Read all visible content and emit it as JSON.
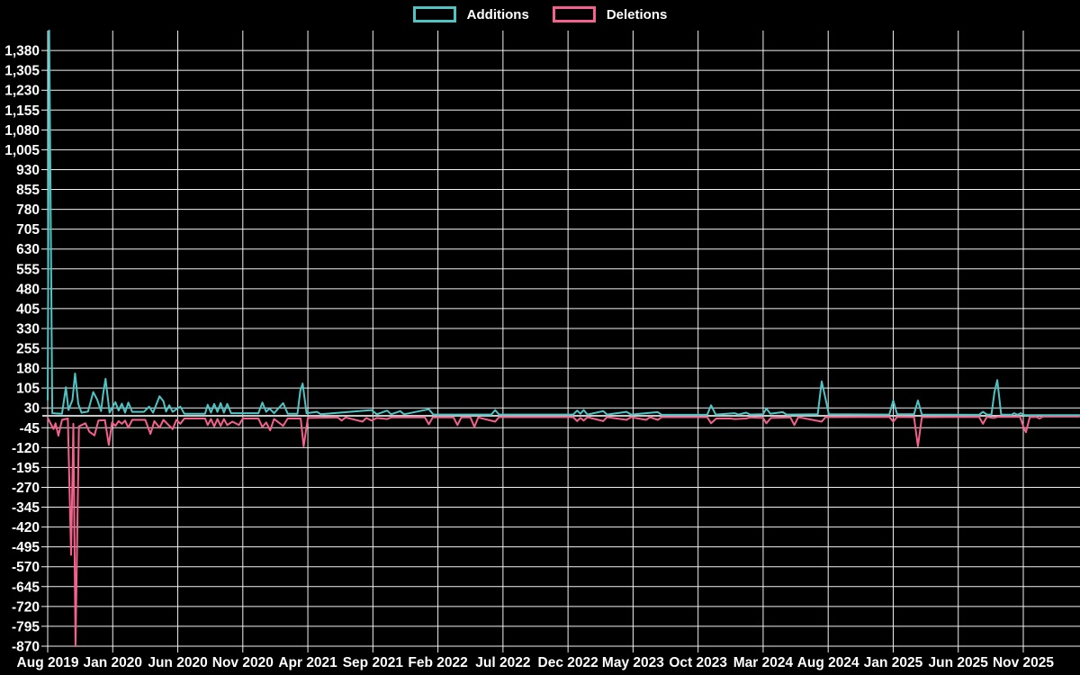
{
  "legend": {
    "items": [
      {
        "id": "additions",
        "label": "Additions",
        "color": "#4ec4c4"
      },
      {
        "id": "deletions",
        "label": "Deletions",
        "color": "#f4618c"
      }
    ]
  },
  "colors": {
    "background": "#000000",
    "grid": "#f2f2f2",
    "zero_line": "#c9c9c9",
    "text": "#ffffff",
    "additions": "#4ec4c4",
    "deletions": "#f4618c"
  },
  "chart_data": {
    "type": "line",
    "title": "",
    "xlabel": "",
    "ylabel": "",
    "legend_position": "top-center",
    "grid": true,
    "x_unit": "months since Aug 2019 (weekly data)",
    "x_axis": {
      "tick_interval_months": 5,
      "tick_labels": [
        "Aug 2019",
        "Jan 2020",
        "Jun 2020",
        "Nov 2020",
        "Apr 2021",
        "Sep 2021",
        "Feb 2022",
        "Jul 2022",
        "Dec 2022",
        "May 2023",
        "Oct 2023",
        "Mar 2024",
        "Aug 2024",
        "Jan 2025",
        "Jun 2025",
        "Nov 2025"
      ],
      "domain_months": [
        0,
        79.3
      ]
    },
    "y_axis": {
      "min": -870,
      "max": 1455,
      "tick_step": 75,
      "ticks": [
        1380,
        1305,
        1230,
        1155,
        1080,
        1005,
        930,
        855,
        780,
        705,
        630,
        555,
        480,
        405,
        330,
        255,
        180,
        105,
        30,
        -45,
        -120,
        -195,
        -270,
        -345,
        -420,
        -495,
        -570,
        -645,
        -720,
        -795,
        -870
      ]
    },
    "zero_line": true,
    "series": [
      {
        "name": "Additions",
        "color": "#4ec4c4",
        "points": [
          [
            0,
            60
          ],
          [
            0.12,
            1455
          ],
          [
            0.35,
            10
          ],
          [
            1.1,
            8
          ],
          [
            1.4,
            108
          ],
          [
            1.6,
            22
          ],
          [
            1.9,
            60
          ],
          [
            2.1,
            160
          ],
          [
            2.35,
            45
          ],
          [
            2.6,
            12
          ],
          [
            3.1,
            16
          ],
          [
            3.5,
            90
          ],
          [
            3.8,
            62
          ],
          [
            4.1,
            18
          ],
          [
            4.27,
            85
          ],
          [
            4.45,
            140
          ],
          [
            4.75,
            12
          ],
          [
            5.2,
            52
          ],
          [
            5.45,
            20
          ],
          [
            5.7,
            46
          ],
          [
            5.95,
            12
          ],
          [
            6.2,
            50
          ],
          [
            6.5,
            15
          ],
          [
            7.4,
            15
          ],
          [
            7.8,
            35
          ],
          [
            8.1,
            12
          ],
          [
            8.6,
            74
          ],
          [
            8.9,
            55
          ],
          [
            9.1,
            16
          ],
          [
            9.35,
            40
          ],
          [
            9.6,
            15
          ],
          [
            10.2,
            35
          ],
          [
            10.5,
            8
          ],
          [
            12.1,
            8
          ],
          [
            12.3,
            42
          ],
          [
            12.55,
            12
          ],
          [
            12.8,
            45
          ],
          [
            13.05,
            15
          ],
          [
            13.3,
            48
          ],
          [
            13.55,
            12
          ],
          [
            13.8,
            45
          ],
          [
            14.1,
            10
          ],
          [
            16.2,
            10
          ],
          [
            16.5,
            50
          ],
          [
            16.8,
            15
          ],
          [
            17.05,
            28
          ],
          [
            17.4,
            10
          ],
          [
            18.1,
            48
          ],
          [
            18.45,
            8
          ],
          [
            19.2,
            8
          ],
          [
            19.42,
            95
          ],
          [
            19.6,
            122
          ],
          [
            19.9,
            10
          ],
          [
            20.7,
            15
          ],
          [
            21.0,
            6
          ],
          [
            24.9,
            22
          ],
          [
            25.3,
            6
          ],
          [
            26.1,
            20
          ],
          [
            26.4,
            6
          ],
          [
            27.1,
            18
          ],
          [
            27.4,
            6
          ],
          [
            29.3,
            25
          ],
          [
            29.65,
            5
          ],
          [
            34.1,
            5
          ],
          [
            34.4,
            22
          ],
          [
            34.7,
            5
          ],
          [
            40.4,
            5
          ],
          [
            40.7,
            20
          ],
          [
            40.95,
            8
          ],
          [
            41.2,
            22
          ],
          [
            41.5,
            5
          ],
          [
            42.7,
            18
          ],
          [
            43.0,
            5
          ],
          [
            44.5,
            15
          ],
          [
            44.85,
            5
          ],
          [
            46.9,
            14
          ],
          [
            47.2,
            4
          ],
          [
            50.7,
            4
          ],
          [
            51.0,
            40
          ],
          [
            51.35,
            5
          ],
          [
            52.8,
            10
          ],
          [
            53.1,
            5
          ],
          [
            53.7,
            12
          ],
          [
            54.0,
            5
          ],
          [
            55.0,
            6
          ],
          [
            55.25,
            28
          ],
          [
            55.55,
            8
          ],
          [
            56.5,
            14
          ],
          [
            56.8,
            5
          ],
          [
            59.2,
            6
          ],
          [
            59.5,
            130
          ],
          [
            59.75,
            75
          ],
          [
            60.05,
            6
          ],
          [
            64.7,
            5
          ],
          [
            65.0,
            58
          ],
          [
            65.3,
            6
          ],
          [
            66.6,
            6
          ],
          [
            66.9,
            58
          ],
          [
            67.2,
            5
          ],
          [
            71.6,
            4
          ],
          [
            71.9,
            15
          ],
          [
            72.2,
            5
          ],
          [
            72.55,
            5
          ],
          [
            72.78,
            88
          ],
          [
            73.0,
            135
          ],
          [
            73.3,
            5
          ],
          [
            74.1,
            4
          ],
          [
            74.3,
            10
          ],
          [
            74.55,
            4
          ],
          [
            74.8,
            10
          ],
          [
            75.1,
            3
          ],
          [
            79.3,
            3
          ]
        ]
      },
      {
        "name": "Deletions",
        "color": "#f4618c",
        "points": [
          [
            0,
            -8
          ],
          [
            0.45,
            -50
          ],
          [
            0.6,
            -28
          ],
          [
            0.82,
            -75
          ],
          [
            1.1,
            -15
          ],
          [
            1.55,
            -10
          ],
          [
            1.8,
            -525
          ],
          [
            1.97,
            -30
          ],
          [
            2.14,
            -870
          ],
          [
            2.4,
            -40
          ],
          [
            2.6,
            -35
          ],
          [
            2.9,
            -28
          ],
          [
            3.2,
            -60
          ],
          [
            3.6,
            -74
          ],
          [
            3.9,
            -18
          ],
          [
            4.4,
            -16
          ],
          [
            4.7,
            -110
          ],
          [
            4.95,
            -25
          ],
          [
            5.2,
            -38
          ],
          [
            5.45,
            -20
          ],
          [
            5.7,
            -30
          ],
          [
            5.95,
            -18
          ],
          [
            6.2,
            -45
          ],
          [
            6.5,
            -15
          ],
          [
            7.5,
            -15
          ],
          [
            7.9,
            -68
          ],
          [
            8.2,
            -20
          ],
          [
            8.6,
            -45
          ],
          [
            8.9,
            -15
          ],
          [
            9.6,
            -50
          ],
          [
            9.9,
            -15
          ],
          [
            10.2,
            -30
          ],
          [
            10.5,
            -10
          ],
          [
            12.1,
            -10
          ],
          [
            12.3,
            -35
          ],
          [
            12.55,
            -12
          ],
          [
            12.8,
            -40
          ],
          [
            13.05,
            -12
          ],
          [
            13.3,
            -38
          ],
          [
            13.55,
            -12
          ],
          [
            13.8,
            -35
          ],
          [
            14.2,
            -22
          ],
          [
            14.7,
            -35
          ],
          [
            15.0,
            -10
          ],
          [
            16.2,
            -10
          ],
          [
            16.5,
            -42
          ],
          [
            16.8,
            -25
          ],
          [
            17.1,
            -55
          ],
          [
            17.4,
            -12
          ],
          [
            18.1,
            -38
          ],
          [
            18.45,
            -10
          ],
          [
            19.45,
            -10
          ],
          [
            19.68,
            -115
          ],
          [
            20.0,
            -8
          ],
          [
            22.3,
            -6
          ],
          [
            22.6,
            -18
          ],
          [
            22.9,
            -6
          ],
          [
            24.2,
            -22
          ],
          [
            24.5,
            -8
          ],
          [
            24.9,
            -18
          ],
          [
            25.3,
            -8
          ],
          [
            26.1,
            -12
          ],
          [
            26.4,
            -6
          ],
          [
            29.0,
            -6
          ],
          [
            29.3,
            -32
          ],
          [
            29.6,
            -6
          ],
          [
            31.2,
            -6
          ],
          [
            31.5,
            -35
          ],
          [
            31.8,
            -6
          ],
          [
            32.5,
            -6
          ],
          [
            32.8,
            -42
          ],
          [
            33.1,
            -6
          ],
          [
            34.4,
            -22
          ],
          [
            34.7,
            -5
          ],
          [
            40.4,
            -5
          ],
          [
            40.7,
            -20
          ],
          [
            40.95,
            -8
          ],
          [
            41.2,
            -18
          ],
          [
            41.5,
            -5
          ],
          [
            42.7,
            -20
          ],
          [
            43.0,
            -5
          ],
          [
            44.5,
            -15
          ],
          [
            44.85,
            -5
          ],
          [
            46.0,
            -15
          ],
          [
            46.3,
            -5
          ],
          [
            46.9,
            -15
          ],
          [
            47.2,
            -5
          ],
          [
            50.7,
            -5
          ],
          [
            51.0,
            -28
          ],
          [
            51.4,
            -10
          ],
          [
            52.5,
            -10
          ],
          [
            52.8,
            -12
          ],
          [
            53.7,
            -10
          ],
          [
            54.0,
            -6
          ],
          [
            55.0,
            -8
          ],
          [
            55.25,
            -28
          ],
          [
            55.6,
            -8
          ],
          [
            57.1,
            -6
          ],
          [
            57.4,
            -35
          ],
          [
            57.7,
            -5
          ],
          [
            59.5,
            -22
          ],
          [
            59.8,
            -5
          ],
          [
            64.7,
            -4
          ],
          [
            65.0,
            -22
          ],
          [
            65.3,
            -4
          ],
          [
            66.6,
            -5
          ],
          [
            66.9,
            -115
          ],
          [
            67.2,
            -5
          ],
          [
            71.6,
            -4
          ],
          [
            71.9,
            -30
          ],
          [
            72.2,
            -4
          ],
          [
            72.7,
            -8
          ],
          [
            73.05,
            -4
          ],
          [
            74.75,
            -4
          ],
          [
            75.0,
            -40
          ],
          [
            75.2,
            -62
          ],
          [
            75.5,
            -5
          ],
          [
            76.0,
            -4
          ],
          [
            76.25,
            -10
          ],
          [
            76.5,
            -3
          ],
          [
            79.3,
            -3
          ]
        ]
      }
    ]
  }
}
